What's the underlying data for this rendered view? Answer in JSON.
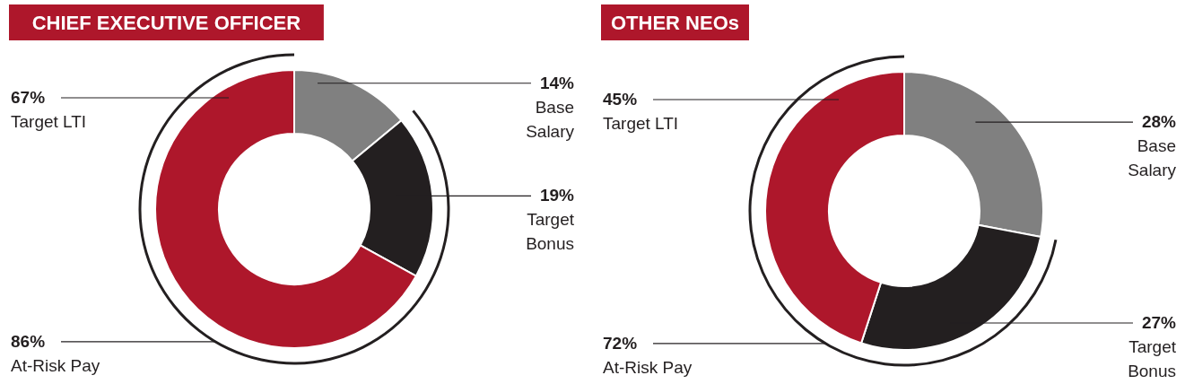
{
  "chart_data": [
    {
      "type": "donut",
      "title": "CHIEF EXECUTIVE OFFICER",
      "categories": [
        "Base Salary",
        "Target Bonus",
        "Target LTI"
      ],
      "values": [
        14,
        19,
        67
      ],
      "colors": [
        "#808080",
        "#231f20",
        "#ae172b"
      ],
      "value_labels": [
        "14%",
        "19%",
        "67%"
      ],
      "annotations": [
        "86% At-Risk Pay"
      ]
    },
    {
      "type": "donut",
      "title": "OTHER NEOs",
      "categories": [
        "Base Salary",
        "Target Bonus",
        "Target LTI"
      ],
      "values": [
        28,
        27,
        45
      ],
      "colors": [
        "#808080",
        "#231f20",
        "#ae172b"
      ],
      "value_labels": [
        "28%",
        "27%",
        "45%"
      ],
      "annotations": [
        "72% At-Risk Pay"
      ]
    }
  ]
}
